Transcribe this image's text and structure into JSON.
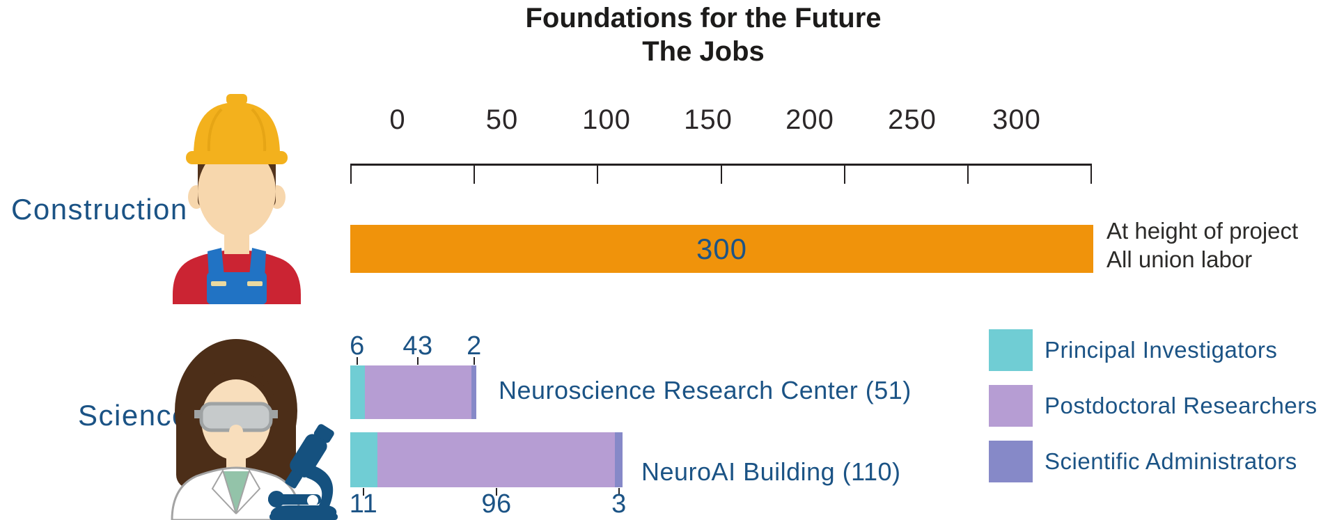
{
  "title": {
    "line1": "Foundations for the Future",
    "line2": "The Jobs"
  },
  "axis": {
    "tick_labels": [
      "0",
      "50",
      "100",
      "150",
      "200",
      "250",
      "300"
    ]
  },
  "rows": {
    "construction": {
      "label": "Construction",
      "bar_value_label": "300",
      "annotation_line1": "At height of project",
      "annotation_line2": "All union labor"
    },
    "science": {
      "label": "Science",
      "bar1": {
        "name": "Neuroscience Research Center (51)",
        "seg_labels": [
          "6",
          "43",
          "2"
        ]
      },
      "bar2": {
        "name": "NeuroAI Building (110)",
        "seg_labels": [
          "11",
          "96",
          "3"
        ]
      }
    }
  },
  "legend": {
    "items": [
      {
        "label": "Principal Investigators",
        "color": "#70cdd4"
      },
      {
        "label": "Postdoctoral Researchers",
        "color": "#b69dd3"
      },
      {
        "label": "Scientific Administrators",
        "color": "#8689c8"
      }
    ]
  },
  "colors": {
    "orange": "#f0930b",
    "teal": "#70cdd4",
    "lilac": "#b69dd3",
    "violet": "#8689c8",
    "navy": "#1b5385"
  },
  "chart_data": [
    {
      "type": "bar",
      "title": "Foundations for the Future — The Jobs",
      "orientation": "horizontal",
      "group": "Construction",
      "axis": {
        "min": 0,
        "max": 300,
        "ticks": [
          0,
          50,
          100,
          150,
          200,
          250,
          300
        ]
      },
      "bars": [
        {
          "label": "Construction",
          "value": 300,
          "value_label": "300",
          "annotation": "At height of project / All union labor",
          "color": "#f0930b"
        }
      ]
    },
    {
      "type": "stacked-bar",
      "orientation": "horizontal",
      "group": "Science",
      "categories": [
        "Neuroscience Research Center (51)",
        "NeuroAI Building (110)"
      ],
      "totals": [
        51,
        110
      ],
      "series": [
        {
          "name": "Principal Investigators",
          "color": "#70cdd4",
          "values": [
            6,
            11
          ]
        },
        {
          "name": "Postdoctoral Researchers",
          "color": "#b69dd3",
          "values": [
            43,
            96
          ]
        },
        {
          "name": "Scientific Administrators",
          "color": "#8689c8",
          "values": [
            2,
            3
          ]
        }
      ],
      "legend_position": "right"
    }
  ]
}
